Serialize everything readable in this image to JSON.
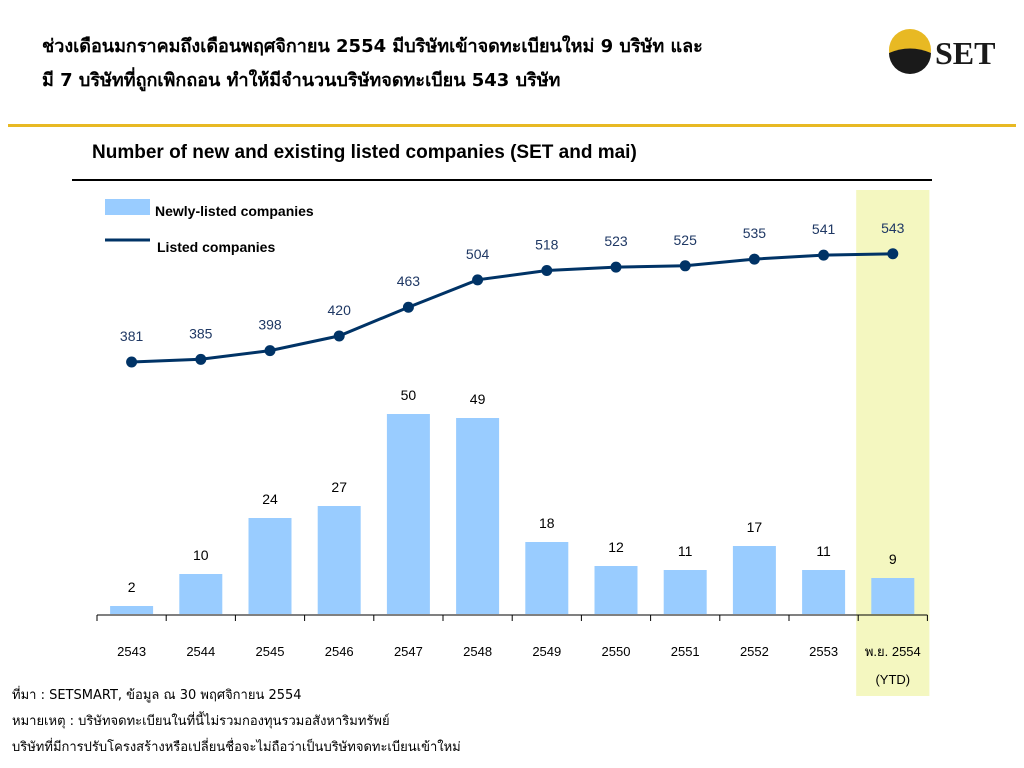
{
  "headline": {
    "line1": "ช่วงเดือนมกราคมถึงเดือนพฤศจิกายน 2554 มีบริษัทเข้าจดทะเบียนใหม่ 9 บริษัท และ",
    "line2": "มี 7 บริษัทที่ถูกเพิกถอน ทำให้มีจำนวนบริษัทจดทะเบียน 543 บริษัท"
  },
  "logo": {
    "text": "SET"
  },
  "colors": {
    "gold": "#e8b923",
    "bar": "#99ccff",
    "line": "#003366",
    "highlight": "#f4f7c0",
    "value_label": "#1f3864"
  },
  "chart_data": {
    "type": "bar",
    "title": "Number of new and existing listed companies (SET and mai)",
    "categories": [
      "2543",
      "2544",
      "2545",
      "2546",
      "2547",
      "2548",
      "2549",
      "2550",
      "2551",
      "2552",
      "2553",
      "พ.ย. 2554"
    ],
    "category_sublabels": [
      "",
      "",
      "",
      "",
      "",
      "",
      "",
      "",
      "",
      "",
      "",
      "(YTD)"
    ],
    "series": [
      {
        "name": "Newly-listed companies",
        "type": "bar",
        "values": [
          2,
          10,
          24,
          27,
          50,
          49,
          18,
          12,
          11,
          17,
          11,
          9
        ]
      },
      {
        "name": "Listed companies",
        "type": "line",
        "values": [
          381,
          385,
          398,
          420,
          463,
          504,
          518,
          523,
          525,
          535,
          541,
          543
        ]
      }
    ],
    "highlight_category": "พ.ย. 2554",
    "legend_placement": "top-left",
    "grid": false
  },
  "footnotes": {
    "source": "ที่มา : SETSMART, ข้อมูล ณ 30 พฤศจิกายน 2554",
    "note1": "หมายเหตุ : บริษัทจดทะเบียนในที่นี้ไม่รวมกองทุนรวมอสังหาริมทรัพย์",
    "note2": "บริษัทที่มีการปรับโครงสร้างหรือเปลี่ยนชื่อจะไม่ถือว่าเป็นบริษัทจดทะเบียนเข้าใหม่"
  }
}
